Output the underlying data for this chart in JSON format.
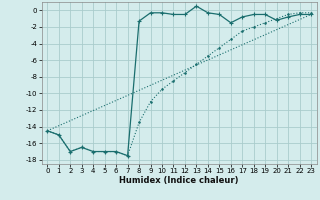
{
  "title": "",
  "xlabel": "Humidex (Indice chaleur)",
  "background_color": "#d4ecec",
  "grid_color": "#aacccc",
  "line_color": "#1a6e6e",
  "xlim": [
    -0.5,
    23.5
  ],
  "ylim": [
    -18.5,
    1.0
  ],
  "yticks": [
    0,
    -2,
    -4,
    -6,
    -8,
    -10,
    -12,
    -14,
    -16,
    -18
  ],
  "xticks": [
    0,
    1,
    2,
    3,
    4,
    5,
    6,
    7,
    8,
    9,
    10,
    11,
    12,
    13,
    14,
    15,
    16,
    17,
    18,
    19,
    20,
    21,
    22,
    23
  ],
  "series1_x": [
    0,
    1,
    2,
    3,
    4,
    5,
    6,
    7,
    8,
    9,
    10,
    11,
    12,
    13,
    14,
    15,
    16,
    17,
    18,
    19,
    20,
    21,
    22,
    23
  ],
  "series1_y": [
    -14.5,
    -15.0,
    -17.0,
    -16.5,
    -17.0,
    -17.0,
    -17.0,
    -17.5,
    -1.3,
    -0.3,
    -0.3,
    -0.5,
    -0.5,
    0.5,
    -0.3,
    -0.5,
    -1.5,
    -0.8,
    -0.5,
    -0.5,
    -1.2,
    -0.8,
    -0.5,
    -0.5
  ],
  "series2_x": [
    0,
    1,
    2,
    3,
    4,
    5,
    6,
    7,
    8,
    9,
    10,
    11,
    12,
    13,
    14,
    15,
    16,
    17,
    18,
    19,
    20,
    21,
    22,
    23
  ],
  "series2_y": [
    -14.5,
    -15.0,
    -17.0,
    -16.5,
    -17.0,
    -17.0,
    -17.0,
    -17.5,
    -13.5,
    -11.0,
    -9.5,
    -8.5,
    -7.5,
    -6.5,
    -5.5,
    -4.5,
    -3.5,
    -2.5,
    -2.0,
    -1.5,
    -1.0,
    -0.5,
    -0.3,
    -0.3
  ],
  "series3_x": [
    0,
    23
  ],
  "series3_y": [
    -14.5,
    -0.5
  ]
}
